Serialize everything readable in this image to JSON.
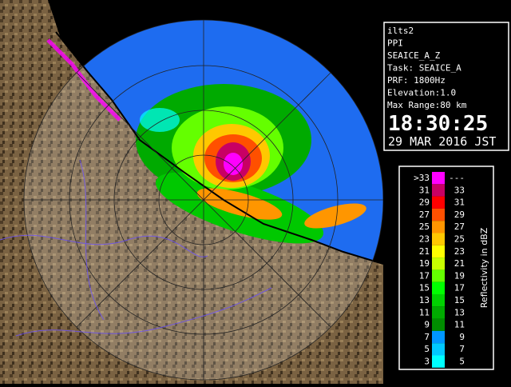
{
  "info": {
    "lines": [
      "ilts2",
      "PPI",
      "SEAICE_A_Z",
      "Task: SEAICE_A",
      "PRF: 1800Hz",
      "Elevation:1.0",
      "Max Range:80 km"
    ],
    "time": "18:30:25",
    "date": "29 MAR 2016 JST"
  },
  "legend": {
    "title": "Reflectivity in dBZ",
    "rows": [
      {
        "low": ">33",
        "high": "---",
        "color": "#ff00ff"
      },
      {
        "low": "31",
        "high": "33",
        "color": "#c80064"
      },
      {
        "low": "29",
        "high": "31",
        "color": "#ff0000"
      },
      {
        "low": "27",
        "high": "29",
        "color": "#ff5000"
      },
      {
        "low": "25",
        "high": "27",
        "color": "#ff9600"
      },
      {
        "low": "23",
        "high": "25",
        "color": "#ffc800"
      },
      {
        "low": "21",
        "high": "23",
        "color": "#ffff00"
      },
      {
        "low": "19",
        "high": "21",
        "color": "#c8ff00"
      },
      {
        "low": "17",
        "high": "19",
        "color": "#64ff00"
      },
      {
        "low": "15",
        "high": "17",
        "color": "#00ff00"
      },
      {
        "low": "13",
        "high": "15",
        "color": "#00d200"
      },
      {
        "low": "11",
        "high": "13",
        "color": "#00aa00"
      },
      {
        "low": "9",
        "high": "11",
        "color": "#008c00"
      },
      {
        "low": "7",
        "high": "9",
        "color": "#0096ff"
      },
      {
        "low": "5",
        "high": "7",
        "color": "#00c8ff"
      },
      {
        "low": "3",
        "high": "5",
        "color": "#00ffff"
      }
    ]
  }
}
